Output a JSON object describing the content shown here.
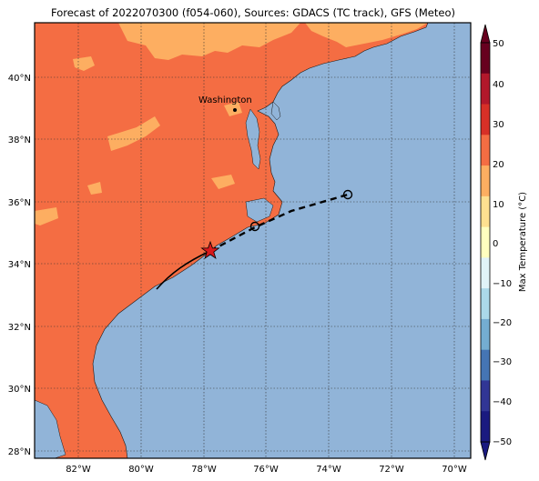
{
  "title": "Forecast of 2022070300 (f054-060), Sources: GDACS (TC track), GFS (Meteo)",
  "map": {
    "lon_labels": [
      "82°W",
      "80°W",
      "78°W",
      "76°W",
      "74°W",
      "72°W",
      "70°W"
    ],
    "lat_labels": [
      "40°N",
      "38°N",
      "36°N",
      "34°N",
      "32°N",
      "30°N",
      "28°N"
    ],
    "place_label": "Washington",
    "colors": {
      "ocean": "#91b4d8",
      "land_warm": "#f46d43",
      "land_hot_light": "#fdae61",
      "track": "#000000",
      "storm_marker": "#d7191c"
    }
  },
  "track": {
    "past_style": "solid",
    "forecast_style": "dashed",
    "current_marker": "red-star",
    "forecast_markers": "open-circles"
  },
  "colorbar": {
    "label": "Max Temperature (°C)",
    "ticks": [
      "50",
      "40",
      "30",
      "20",
      "10",
      "0",
      "−10",
      "−20",
      "−30",
      "−40",
      "−50"
    ],
    "colors": [
      "#67001f",
      "#b2182b",
      "#d73027",
      "#f46d43",
      "#fdae61",
      "#fee090",
      "#ffffbf",
      "#e0f3f8",
      "#abd9e9",
      "#74add1",
      "#4575b4",
      "#313695",
      "#1a1a80"
    ]
  }
}
